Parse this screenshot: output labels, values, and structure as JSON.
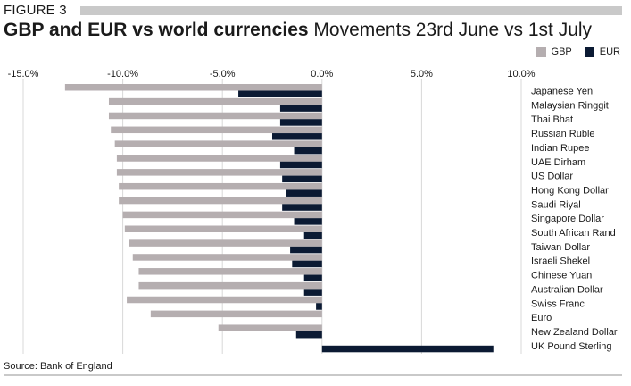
{
  "figure_label": "FIGURE 3",
  "title_bold": "GBP and EUR vs world currencies",
  "title_sub": "Movements 23rd June vs 1st July",
  "source": "Source: Bank of England",
  "colors": {
    "gbp": "#b5aeb0",
    "eur": "#0b1a33",
    "axis": "#d8d8d8",
    "rule": "#c9c9c9"
  },
  "chart_data": {
    "type": "bar",
    "orientation": "horizontal",
    "xlim": [
      -15,
      10
    ],
    "ticks": [
      {
        "value": -15,
        "label": "-15.0%"
      },
      {
        "value": -10,
        "label": "-10.0%"
      },
      {
        "value": -5,
        "label": "-5.0%"
      },
      {
        "value": 0,
        "label": "0.0%"
      },
      {
        "value": 5,
        "label": "5.0%"
      },
      {
        "value": 10,
        "label": "10.0%"
      }
    ],
    "legend_position": "top-right",
    "grid": "vertical",
    "categories": [
      "Japanese Yen",
      "Malaysian Ringgit",
      "Thai Bhat",
      "Russian Ruble",
      "Indian Rupee",
      "UAE Dirham",
      "US Dollar",
      "Hong Kong Dollar",
      "Saudi Riyal",
      "Singapore Dollar",
      "South African Rand",
      "Taiwan Dollar",
      "Israeli Shekel",
      "Chinese Yuan",
      "Australian Dollar",
      "Swiss Franc",
      "Euro",
      "New Zealand Dollar",
      "UK Pound Sterling"
    ],
    "series": [
      {
        "name": "GBP",
        "values": [
          -12.9,
          -10.7,
          -10.7,
          -10.6,
          -10.4,
          -10.3,
          -10.3,
          -10.2,
          -10.2,
          -10.0,
          -9.9,
          -9.7,
          -9.5,
          -9.2,
          -9.2,
          -9.8,
          -8.6,
          -5.2,
          0.0
        ]
      },
      {
        "name": "EUR",
        "values": [
          -4.2,
          -2.1,
          -2.1,
          -2.5,
          -1.4,
          -2.1,
          -2.0,
          -1.8,
          -2.0,
          -1.4,
          -0.9,
          -1.6,
          -1.5,
          -0.9,
          -0.9,
          -0.3,
          0.0,
          -1.3,
          8.6
        ]
      }
    ]
  }
}
